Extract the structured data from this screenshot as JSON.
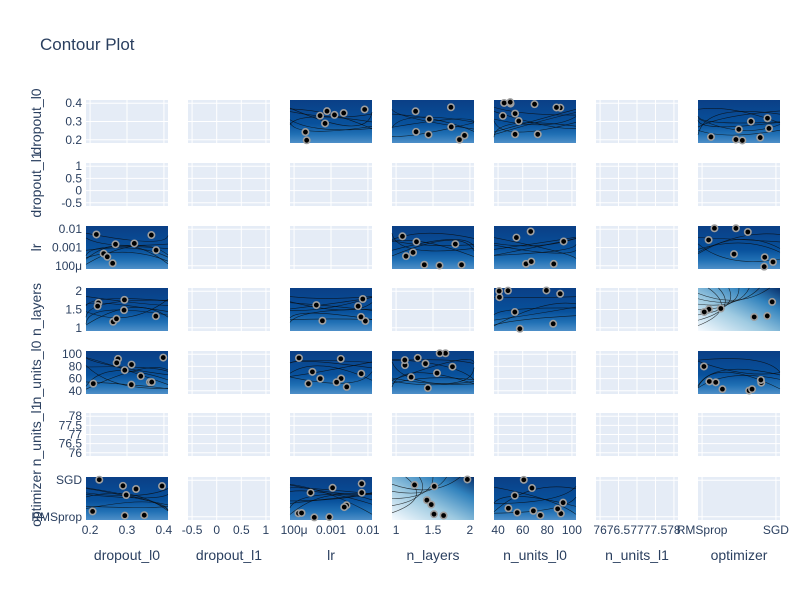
{
  "chart_data": {
    "type": "contour-matrix",
    "title": "Contour Plot",
    "params": [
      "dropout_l0",
      "dropout_l1",
      "lr",
      "n_layers",
      "n_units_l0",
      "n_units_l1",
      "optimizer"
    ],
    "x_ticks": [
      [
        "0.2",
        "0.3",
        "0.4"
      ],
      [
        "-0.5",
        "0",
        "0.5",
        "1"
      ],
      [
        "100μ",
        "0.001",
        "0.01"
      ],
      [
        "1",
        "1.5",
        "2"
      ],
      [
        "40",
        "60",
        "80",
        "100"
      ],
      [
        "76",
        "76.5",
        "77",
        "77.5",
        "78"
      ],
      [
        "RMSprop",
        "SGD"
      ]
    ],
    "y_ticks": [
      [
        "0.2",
        "0.3",
        "0.4"
      ],
      [
        "-0.5",
        "0",
        "0.5",
        "1"
      ],
      [
        "100μ",
        "0.001",
        "0.01"
      ],
      [
        "1",
        "1.5",
        "2"
      ],
      [
        "40",
        "60",
        "80",
        "100"
      ],
      [
        "76",
        "76.5",
        "77",
        "77.5",
        "78"
      ],
      [
        "RMSprop",
        "SGD"
      ]
    ],
    "colorscale": "Blues",
    "trial_points_color": "#000000",
    "filled_cells": [
      [
        0,
        2
      ],
      [
        0,
        3
      ],
      [
        0,
        4
      ],
      [
        0,
        6
      ],
      [
        2,
        0
      ],
      [
        2,
        3
      ],
      [
        2,
        4
      ],
      [
        2,
        6
      ],
      [
        3,
        0
      ],
      [
        3,
        2
      ],
      [
        3,
        4
      ],
      [
        3,
        6
      ],
      [
        4,
        0
      ],
      [
        4,
        2
      ],
      [
        4,
        3
      ],
      [
        4,
        6
      ],
      [
        6,
        0
      ],
      [
        6,
        2
      ],
      [
        6,
        3
      ],
      [
        6,
        4
      ]
    ],
    "grid": true
  }
}
